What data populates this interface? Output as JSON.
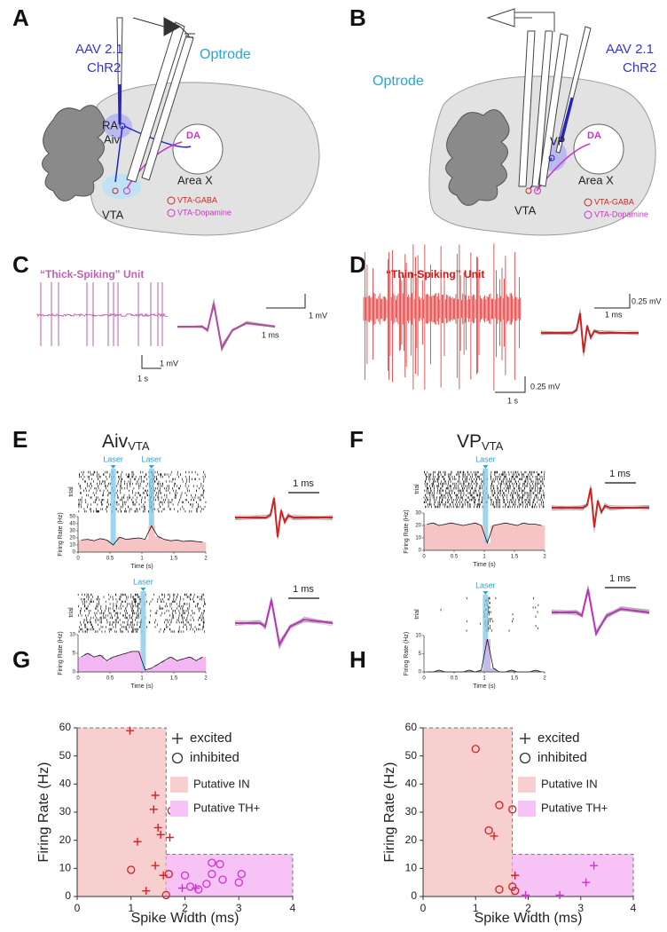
{
  "panels": {
    "A": {
      "letter": "A",
      "virus": "AAV 2.1",
      "opsin": "ChR2",
      "optrode": "Optrode",
      "ra": "RA",
      "aiv": "Aiv",
      "da": "DA",
      "area": "Area X",
      "vta": "VTA",
      "gaba": "VTA-GABA",
      "dopamine": "VTA-Dopamine"
    },
    "B": {
      "letter": "B",
      "virus": "AAV 2.1",
      "opsin": "ChR2",
      "optrode": "Optrode",
      "vp": "VP",
      "da": "DA",
      "area": "Area X",
      "vta": "VTA",
      "gaba": "VTA-GABA",
      "dopamine": "VTA-Dopamine"
    },
    "C": {
      "letter": "C",
      "title": "“Thick-Spiking” Unit",
      "trace_scale_v": "1 mV",
      "trace_scale_t": "1 s",
      "wave_scale_v": "1 mV",
      "wave_scale_t": "1 ms"
    },
    "D": {
      "letter": "D",
      "title": "“Thin-Spiking” Unit",
      "trace_scale_v": "0.25 mV",
      "trace_scale_t": "1 s",
      "wave_scale_v": "0.25 mV",
      "wave_scale_t": "1 ms"
    },
    "E": {
      "letter": "E",
      "title": "Aiv",
      "title_sub": "VTA",
      "plots": [
        {
          "laser_labels": [
            "Laser",
            "Laser"
          ],
          "laser_times": [
            0.55,
            1.15
          ],
          "trial_label": "trial",
          "ylabel": "Firing Rate (Hz)",
          "xlabel": "Time (s)",
          "xlim": [
            0,
            2
          ],
          "xticks": [
            0,
            0.5,
            1,
            1.5,
            2
          ],
          "ylim": [
            0,
            50
          ],
          "yticks": [
            0,
            10,
            20,
            30,
            40,
            50
          ],
          "rate": [
            17,
            18,
            16,
            19,
            17,
            10,
            21,
            18,
            19,
            20,
            18,
            37,
            22,
            18,
            16,
            17,
            15,
            16,
            15,
            14
          ],
          "wave_scale": "1 ms"
        },
        {
          "laser_labels": [
            "Laser"
          ],
          "laser_times": [
            1.02
          ],
          "trial_label": "trial",
          "ylabel": "Firing Rate (Hz)",
          "xlabel": "Time (s)",
          "xlim": [
            0,
            2
          ],
          "xticks": [
            0,
            0.5,
            1,
            1.5,
            2
          ],
          "ylim": [
            0,
            10
          ],
          "yticks": [
            0,
            5,
            10
          ],
          "rate": [
            4,
            5,
            4,
            4.5,
            3,
            4,
            4.5,
            5,
            5.5,
            5.5,
            0.5,
            1,
            2,
            3,
            4,
            3,
            3.5,
            4,
            3,
            4
          ],
          "wave_scale": "1 ms"
        }
      ]
    },
    "F": {
      "letter": "F",
      "title": "VP",
      "title_sub": "VTA",
      "plots": [
        {
          "laser_labels": [
            "Laser"
          ],
          "laser_times": [
            1.02
          ],
          "trial_label": "trial",
          "ylabel": "Firing Rate (Hz)",
          "xlabel": "Time (s)",
          "xlim": [
            0,
            2
          ],
          "xticks": [
            0,
            0.5,
            1,
            1.5,
            2
          ],
          "ylim": [
            0,
            30
          ],
          "yticks": [
            0,
            10,
            20,
            30
          ],
          "rate": [
            21,
            22,
            20,
            21,
            22,
            21,
            20,
            21,
            22,
            20,
            6,
            20,
            21,
            22,
            21,
            20,
            22,
            21,
            21,
            20
          ],
          "wave_scale": "1 ms"
        },
        {
          "laser_labels": [
            "Laser"
          ],
          "laser_times": [
            1.02
          ],
          "trial_label": "trial",
          "ylabel": "Firing Rate (Hz)",
          "xlabel": "Time (s)",
          "xlim": [
            0,
            2
          ],
          "xticks": [
            0,
            0.5,
            1,
            1.5,
            2
          ],
          "ylim": [
            0,
            10
          ],
          "yticks": [
            0,
            5,
            10
          ],
          "rate": [
            0,
            0,
            0.5,
            0,
            0,
            0,
            0,
            0.5,
            0,
            0.5,
            9,
            1,
            0,
            0,
            0.5,
            0,
            0,
            0,
            0.5,
            0
          ],
          "wave_scale": "1 ms"
        }
      ]
    }
  },
  "chart_data": [
    {
      "type": "scatter",
      "panel": "G",
      "xlabel": "Spike Width (ms)",
      "ylabel": "Firing Rate (Hz)",
      "xlim": [
        0,
        4
      ],
      "ylim": [
        0,
        60
      ],
      "xticks": [
        0,
        1,
        2,
        3,
        4
      ],
      "yticks": [
        0,
        10,
        20,
        30,
        40,
        50,
        60
      ],
      "regions": [
        {
          "name": "Putative IN",
          "color": "#f8cfcf",
          "xlim": [
            0,
            1.65
          ],
          "ylim": [
            0,
            60
          ]
        },
        {
          "name": "Putative TH+",
          "color": "#f7c3f7",
          "xlim": [
            1.65,
            4
          ],
          "ylim": [
            0,
            15
          ]
        }
      ],
      "series": [
        {
          "name": "excited",
          "marker": "+",
          "color": "#333333",
          "x": [
            0.98,
            1.45,
            1.42,
            1.12,
            1.5,
            1.55,
            1.72,
            1.45,
            1.28,
            1.6,
            1.95,
            2.2
          ],
          "values": [
            59,
            36,
            31,
            19.5,
            24.5,
            22,
            21,
            11,
            2,
            7.5,
            3,
            3
          ],
          "point_colors": [
            "#d62020",
            "#d62020",
            "#d62020",
            "#d62020",
            "#d62020",
            "#d62020",
            "#d62020",
            "#d62020",
            "#d62020",
            "#d62020",
            "#cc33cc",
            "#cc33cc"
          ]
        },
        {
          "name": "inhibited",
          "marker": "o",
          "color": "#333333",
          "x": [
            1.0,
            1.75,
            1.7,
            1.65,
            2.0,
            2.1,
            2.25,
            2.4,
            2.5,
            2.5,
            2.65,
            2.7,
            3.0,
            3.05
          ],
          "values": [
            9.5,
            30.5,
            8,
            0.5,
            7.5,
            3.5,
            2.5,
            4.5,
            8,
            12,
            11.5,
            6,
            5,
            8
          ],
          "point_colors": [
            "#d62020",
            "#d62020",
            "#d62020",
            "#d62020",
            "#cc33cc",
            "#cc33cc",
            "#cc33cc",
            "#cc33cc",
            "#cc33cc",
            "#cc33cc",
            "#cc33cc",
            "#cc33cc",
            "#cc33cc",
            "#cc33cc"
          ]
        }
      ]
    },
    {
      "type": "scatter",
      "panel": "H",
      "xlabel": "Spike Width (ms)",
      "ylabel": "Firing Rate (Hz)",
      "xlim": [
        0,
        4
      ],
      "ylim": [
        0,
        60
      ],
      "xticks": [
        0,
        1,
        2,
        3,
        4
      ],
      "yticks": [
        0,
        10,
        20,
        30,
        40,
        50,
        60
      ],
      "regions": [
        {
          "name": "Putative IN",
          "color": "#f8cfcf",
          "xlim": [
            0,
            1.7
          ],
          "ylim": [
            0,
            60
          ]
        },
        {
          "name": "Putative TH+",
          "color": "#f7c3f7",
          "xlim": [
            1.7,
            4
          ],
          "ylim": [
            0,
            15
          ]
        }
      ],
      "series": [
        {
          "name": "excited",
          "marker": "+",
          "color": "#333333",
          "x": [
            1.35,
            1.75,
            1.95,
            2.6,
            3.1,
            3.25
          ],
          "values": [
            21.5,
            7.5,
            0.5,
            0.5,
            5,
            11
          ],
          "point_colors": [
            "#d62020",
            "#d62020",
            "#cc33cc",
            "#cc33cc",
            "#cc33cc",
            "#cc33cc"
          ]
        },
        {
          "name": "inhibited",
          "marker": "o",
          "color": "#333333",
          "x": [
            1.0,
            1.25,
            1.45,
            1.7,
            1.45,
            1.7,
            1.75
          ],
          "values": [
            52.5,
            23.5,
            32.5,
            31,
            2.5,
            3.5,
            2
          ],
          "point_colors": [
            "#d62020",
            "#d62020",
            "#d62020",
            "#d62020",
            "#d62020",
            "#d62020",
            "#d62020"
          ]
        }
      ]
    }
  ]
}
